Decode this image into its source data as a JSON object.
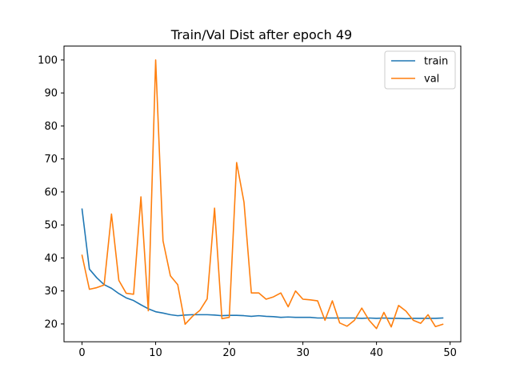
{
  "chart_data": {
    "type": "line",
    "title": "Train/Val Dist after epoch 49",
    "xlabel": "",
    "ylabel": "",
    "xlim": [
      -2.45,
      51.45
    ],
    "ylim": [
      14.6,
      104.2
    ],
    "xticks": [
      0,
      10,
      20,
      30,
      40,
      50
    ],
    "yticks": [
      20,
      30,
      40,
      50,
      60,
      70,
      80,
      90,
      100
    ],
    "grid": false,
    "legend": "top-right",
    "x": [
      0,
      1,
      2,
      3,
      4,
      5,
      6,
      7,
      8,
      9,
      10,
      11,
      12,
      13,
      14,
      15,
      16,
      17,
      18,
      19,
      20,
      21,
      22,
      23,
      24,
      25,
      26,
      27,
      28,
      29,
      30,
      31,
      32,
      33,
      34,
      35,
      36,
      37,
      38,
      39,
      40,
      41,
      42,
      43,
      44,
      45,
      46,
      47,
      48,
      49
    ],
    "series": [
      {
        "name": "train",
        "color": "#1f77b4",
        "values": [
          54.8,
          36.6,
          34.0,
          31.9,
          30.8,
          29.2,
          27.9,
          27.1,
          25.8,
          24.6,
          23.7,
          23.3,
          22.8,
          22.5,
          22.7,
          22.8,
          22.8,
          22.8,
          22.7,
          22.5,
          22.6,
          22.6,
          22.5,
          22.3,
          22.5,
          22.3,
          22.2,
          22.0,
          22.1,
          22.0,
          22.0,
          22.0,
          21.8,
          21.8,
          21.8,
          21.8,
          21.8,
          21.8,
          21.7,
          21.8,
          21.7,
          21.8,
          21.7,
          21.7,
          21.6,
          21.7,
          21.7,
          21.7,
          21.7,
          21.8
        ]
      },
      {
        "name": "val",
        "color": "#ff7f0e",
        "values": [
          40.8,
          30.5,
          31.0,
          31.8,
          53.3,
          33.2,
          29.3,
          29.0,
          58.5,
          24.0,
          100.0,
          45.2,
          34.6,
          31.9,
          19.9,
          22.3,
          24.1,
          27.6,
          55.1,
          21.6,
          22.0,
          68.9,
          56.9,
          29.4,
          29.4,
          27.5,
          28.2,
          29.4,
          25.2,
          30.0,
          27.5,
          27.3,
          27.0,
          21.1,
          27.0,
          20.3,
          19.3,
          21.1,
          24.8,
          21.1,
          18.6,
          23.5,
          19.1,
          25.6,
          23.9,
          21.1,
          20.2,
          22.8,
          19.2,
          19.9
        ]
      }
    ]
  }
}
